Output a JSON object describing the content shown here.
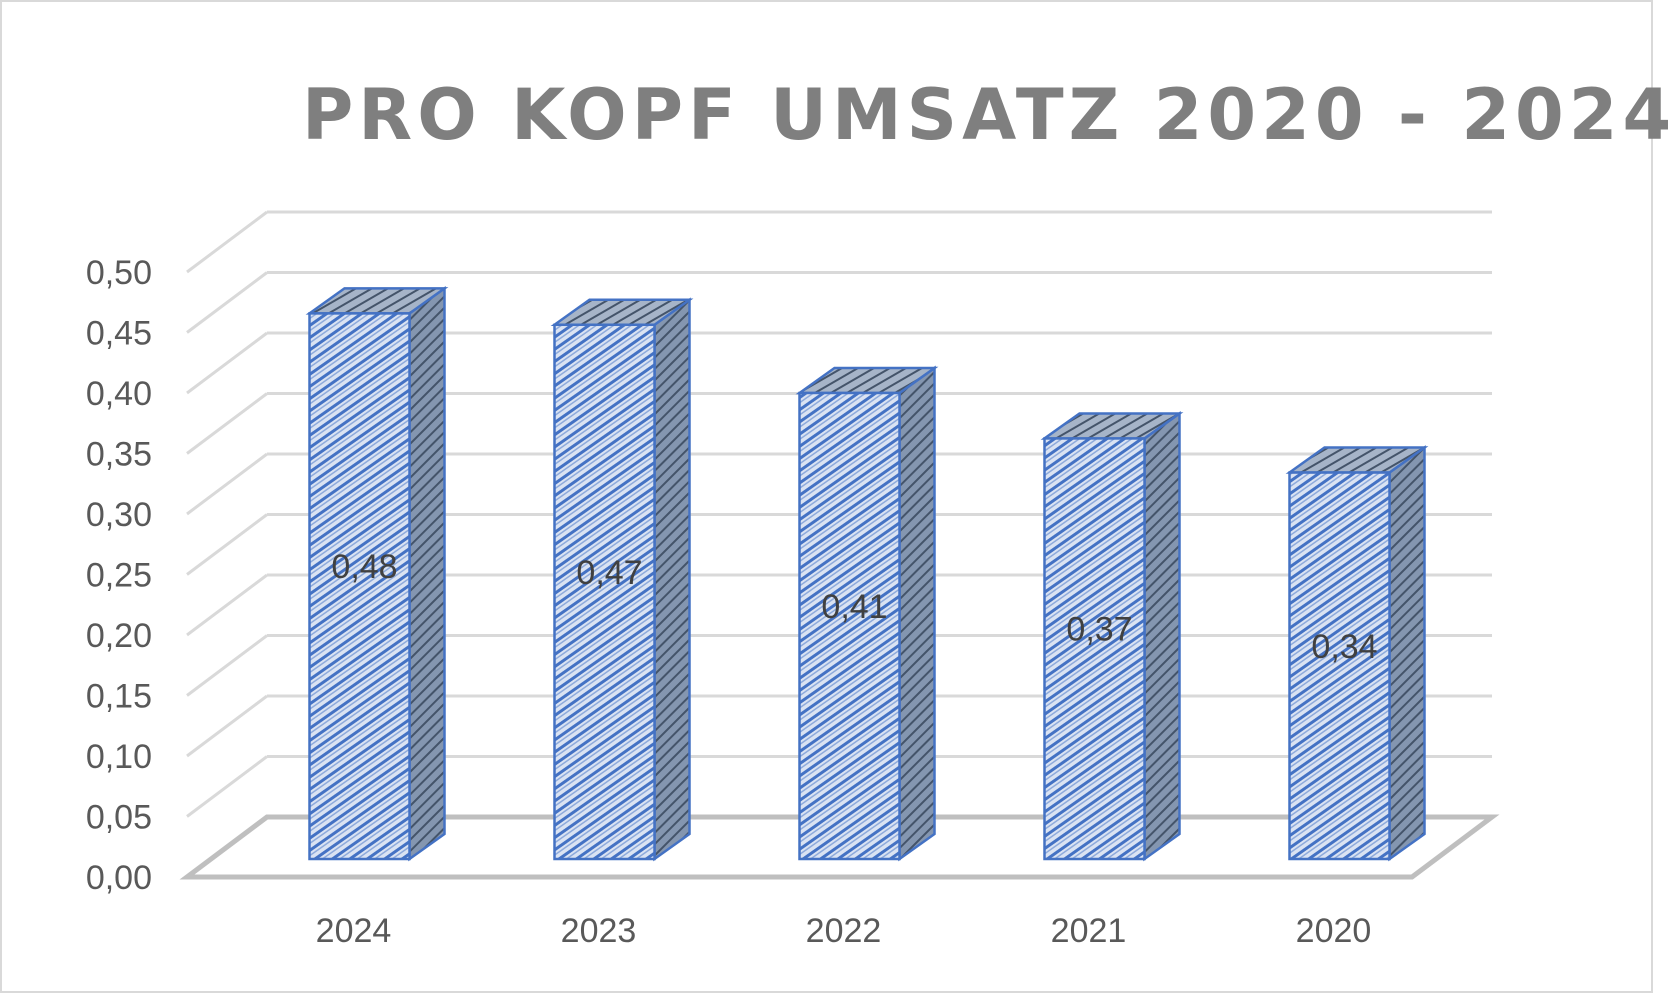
{
  "chart_data": {
    "type": "bar",
    "title": "PRO KOPF UMSATZ 2020 - 2024",
    "categories": [
      "2024",
      "2023",
      "2022",
      "2021",
      "2020"
    ],
    "values": [
      0.48,
      0.47,
      0.41,
      0.37,
      0.34
    ],
    "data_labels": [
      "0,48",
      "0,47",
      "0,41",
      "0,37",
      "0,34"
    ],
    "ylim": [
      0,
      0.5
    ],
    "yticks": [
      "0,00",
      "0,05",
      "0,10",
      "0,15",
      "0,20",
      "0,25",
      "0,30",
      "0,35",
      "0,40",
      "0,45",
      "0,50"
    ],
    "xlabel": "",
    "ylabel": "",
    "grid": true,
    "legend": "none",
    "style": "3d-column",
    "colors": {
      "bar_front": "#dae3f3",
      "bar_pattern": "#4472c4",
      "bar_side": "#7f8ca3",
      "bar_edge": "#4472c4",
      "grid": "#d9d9d9",
      "floor": "#bfbfbf",
      "title": "#7f7f7f"
    }
  }
}
